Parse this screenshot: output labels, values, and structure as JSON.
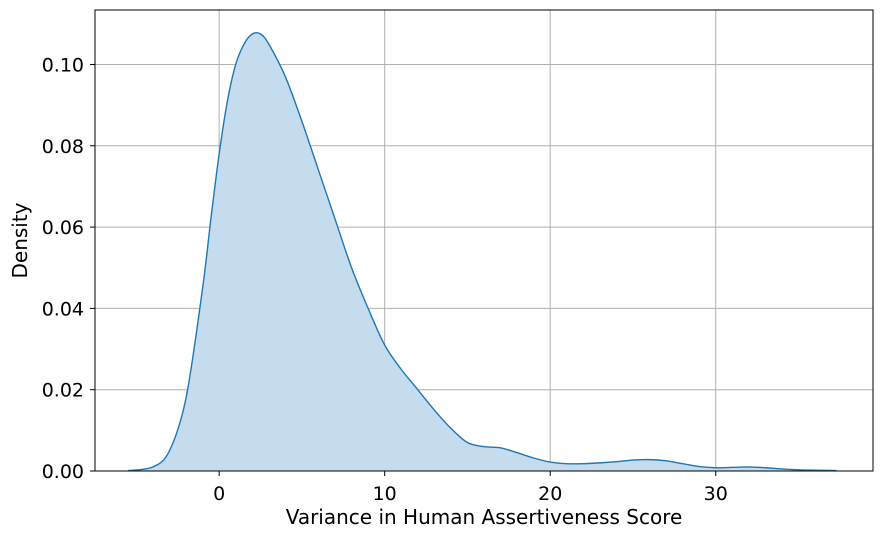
{
  "chart_data": {
    "type": "area",
    "title": "",
    "xlabel": "Variance in Human Assertiveness Score",
    "ylabel": "Density",
    "xlim": [
      -7.5,
      39.5
    ],
    "ylim": [
      0.0,
      0.1134
    ],
    "x_ticks": [
      0,
      10,
      20,
      30
    ],
    "x_tick_labels": [
      "0",
      "10",
      "20",
      "30"
    ],
    "y_ticks": [
      0.0,
      0.02,
      0.04,
      0.06,
      0.08,
      0.1
    ],
    "y_tick_labels": [
      "0.00",
      "0.02",
      "0.04",
      "0.06",
      "0.08",
      "0.10"
    ],
    "grid": true,
    "legend": "none",
    "series": [
      {
        "line_color": "#1f77b4",
        "fill_color": "#c5dbee",
        "x": [
          -5.5,
          -4.0,
          -3.0,
          -2.0,
          -1.0,
          -0.5,
          0.0,
          0.5,
          1.0,
          1.5,
          2.0,
          2.5,
          3.0,
          4.0,
          5.0,
          6.0,
          7.0,
          8.0,
          9.0,
          10.0,
          11.0,
          12.0,
          13.0,
          14.0,
          15.0,
          16.0,
          17.0,
          18.0,
          19.0,
          20.0,
          21.0,
          22.0,
          23.0,
          24.0,
          25.0,
          26.0,
          27.0,
          28.0,
          29.0,
          30.0,
          31.0,
          32.0,
          33.0,
          34.0,
          35.0,
          36.0,
          37.3
        ],
        "y": [
          0.0001,
          0.001,
          0.005,
          0.018,
          0.045,
          0.062,
          0.078,
          0.091,
          0.1,
          0.105,
          0.1075,
          0.1075,
          0.105,
          0.097,
          0.086,
          0.074,
          0.062,
          0.05,
          0.04,
          0.031,
          0.025,
          0.02,
          0.015,
          0.0105,
          0.007,
          0.006,
          0.0057,
          0.0045,
          0.0032,
          0.0022,
          0.0018,
          0.0018,
          0.002,
          0.0023,
          0.0027,
          0.0028,
          0.0025,
          0.0018,
          0.0011,
          0.0008,
          0.0009,
          0.001,
          0.0008,
          0.0005,
          0.0003,
          0.0002,
          0.0001
        ]
      }
    ]
  }
}
